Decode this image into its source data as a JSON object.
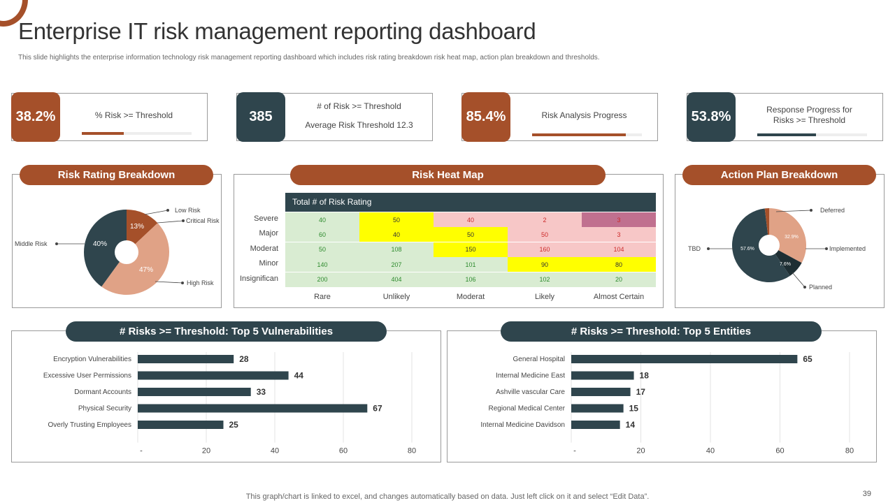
{
  "title": "Enterprise IT risk management reporting dashboard",
  "subtitle": "This slide highlights the enterprise information technology risk management reporting dashboard which includes risk rating breakdown risk heat map, action plan breakdown and thresholds.",
  "colors": {
    "rust": "#a5502a",
    "slate": "#2f454d",
    "peach": "#e0a286",
    "green": "#d9ecd2",
    "yellow": "#ffff00",
    "pink": "#f7c7c7",
    "mauve": "#c0708f"
  },
  "kpis": [
    {
      "value": "38.2%",
      "label": "% Risk >= Threshold",
      "progress": 38.2
    },
    {
      "value": "385",
      "label": "# of Risk >= Threshold",
      "label2": "Average  Risk Threshold  12.3"
    },
    {
      "value": "85.4%",
      "label": "Risk Analysis Progress",
      "progress": 85.4
    },
    {
      "value": "53.8%",
      "label": "Response Progress for",
      "label2": "Risks >= Threshold",
      "progress": 53.8
    }
  ],
  "risk_rating": {
    "title": "Risk Rating Breakdown",
    "slices": [
      {
        "label": "Critical Risk",
        "value": 13,
        "text": "13%"
      },
      {
        "label": "High Risk",
        "value": 47,
        "text": "47%"
      },
      {
        "label": "Middle Risk",
        "value": 40,
        "text": "40%"
      },
      {
        "label": "Low Risk",
        "value": 0,
        "text": ""
      }
    ],
    "legend": {
      "low": "Low Risk",
      "critical": "Critical Risk",
      "middle": "Middle Risk",
      "high": "High Risk"
    }
  },
  "heat_map": {
    "title": "Risk Heat Map",
    "header": "Total # of Risk Rating",
    "rows": [
      "Severe",
      "Major",
      "Moderat",
      "Minor",
      "Insignifican"
    ],
    "cols": [
      "Rare",
      "Unlikely",
      "Moderat",
      "Likely",
      "Almost Certain"
    ],
    "values": [
      [
        "40",
        "50",
        "40",
        "2",
        "3"
      ],
      [
        "60",
        "40",
        "50",
        "50",
        "3"
      ],
      [
        "50",
        "108",
        "150",
        "160",
        "104"
      ],
      [
        "140",
        "207",
        "101",
        "90",
        "80"
      ],
      [
        "200",
        "404",
        "106",
        "102",
        "20"
      ]
    ]
  },
  "action_plan": {
    "title": "Action Plan Breakdown",
    "slices": [
      {
        "label": "Implemented",
        "value": 32.9,
        "text": "32.9%"
      },
      {
        "label": "Planned",
        "value": 7.6,
        "text": "7.6%"
      },
      {
        "label": "TBD",
        "value": 57.6,
        "text": "57.6%"
      },
      {
        "label": "Deferred",
        "value": 1.9,
        "text": ""
      }
    ],
    "legend": {
      "deferred": "Deferred",
      "implemented": "Implemented",
      "planned": "Planned",
      "tbd": "TBD"
    }
  },
  "chart_data": [
    {
      "type": "bar",
      "title": "# Risks >= Threshold: Top 5 Vulnerabilities",
      "categories": [
        "Encryption Vulnerabilities",
        "Excessive User Permissions",
        "Dormant Accounts",
        "Physical Security",
        "Overly Trusting Employees"
      ],
      "values": [
        28,
        44,
        33,
        67,
        25
      ],
      "value_labels": [
        "28",
        "44",
        "33",
        "67",
        "25"
      ],
      "ticks": [
        "-",
        "20",
        "40",
        "60",
        "80"
      ],
      "xlim": [
        0,
        80
      ]
    },
    {
      "type": "bar",
      "title": "# Risks >= Threshold: Top 5 Entities",
      "categories": [
        "General Hospital",
        "Internal Medicine East",
        "Ashville vascular Care",
        "Regional Medical Center",
        "Internal Medicine Davidson"
      ],
      "values": [
        65,
        18,
        17,
        15,
        14
      ],
      "value_labels": [
        "65",
        "18",
        "17",
        "15",
        "14"
      ],
      "ticks": [
        "-",
        "20",
        "40",
        "60",
        "80"
      ],
      "xlim": [
        0,
        80
      ]
    }
  ],
  "footnote": "This graph/chart is linked to excel,  and changes automatically based on data. Just left click on it and select “Edit Data”.",
  "page_number": "39"
}
